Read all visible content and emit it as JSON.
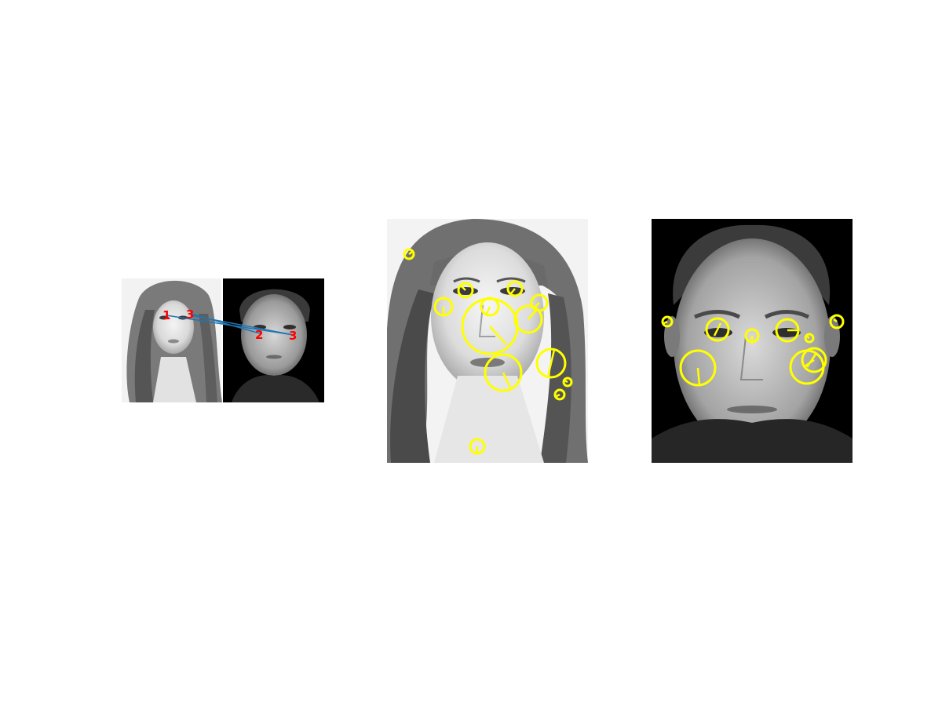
{
  "panels": {
    "match": {
      "labels": {
        "left": [
          "1",
          "3"
        ],
        "right": [
          "2",
          "3"
        ],
        "right_overlap": "1"
      }
    },
    "colors": {
      "feature": "#ffff00",
      "match_line": "#1f77b4",
      "match_label": "#ff0000"
    },
    "female_feature_count": 17,
    "male_feature_count": 10
  }
}
